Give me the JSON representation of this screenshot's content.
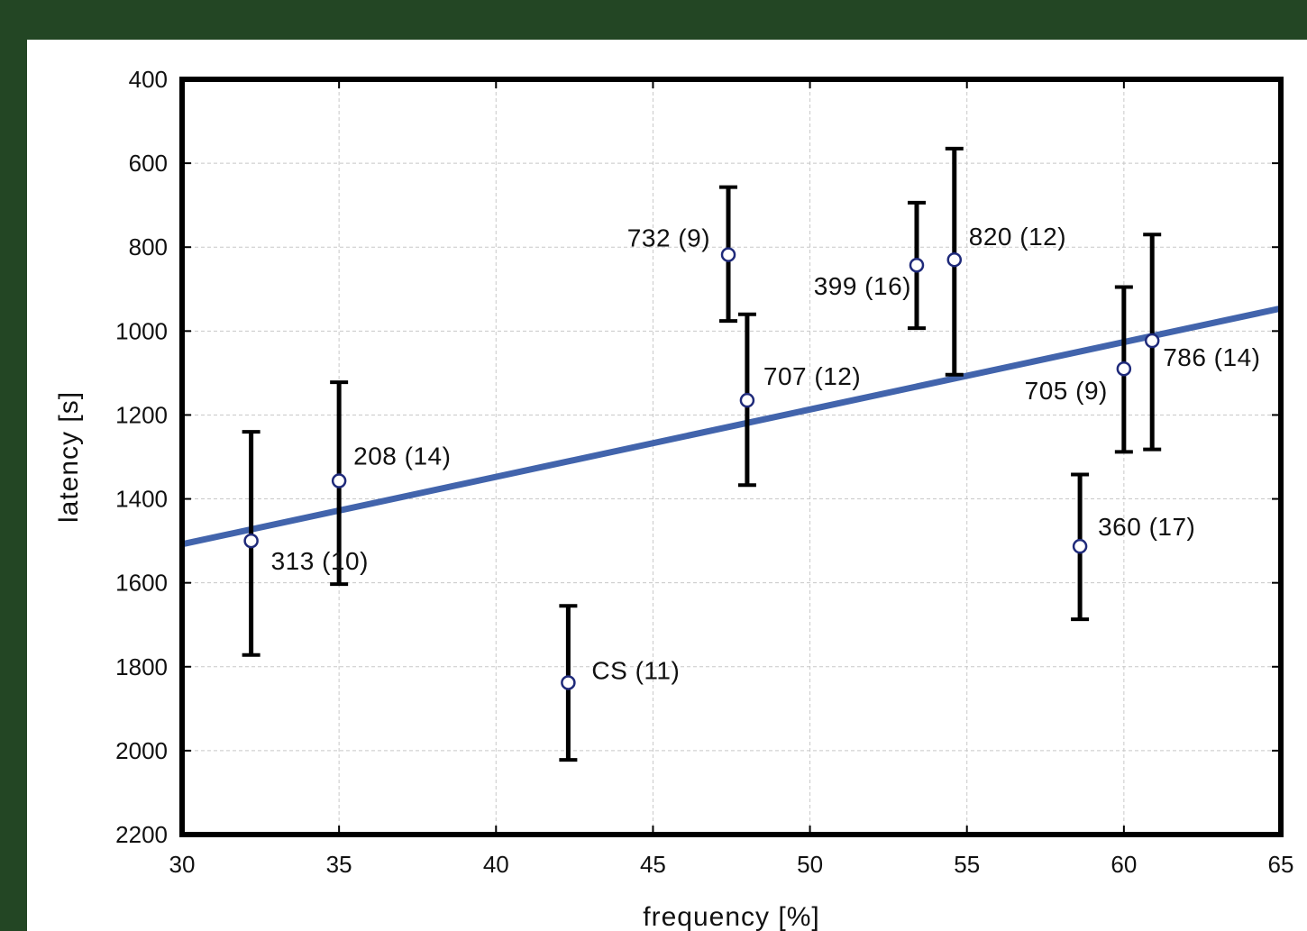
{
  "chart_data": {
    "type": "scatter",
    "xlabel": "frequency [%]",
    "ylabel": "latency [s]",
    "xlim": [
      30,
      65
    ],
    "ylim": [
      400,
      2200
    ],
    "y_inverted": true,
    "x_ticks": [
      "30",
      "35",
      "40",
      "45",
      "50",
      "55",
      "60",
      "65"
    ],
    "y_ticks": [
      "400",
      "600",
      "800",
      "1000",
      "1200",
      "1400",
      "1600",
      "1800",
      "2000",
      "2200"
    ],
    "grid": true,
    "colors": {
      "trend": "#4264ac",
      "point_stroke": "#1f2a7a",
      "errorbar": "#000000",
      "frame": "#000000"
    },
    "trendline": {
      "x": [
        30,
        65
      ],
      "y": [
        1508,
        946
      ]
    },
    "points": [
      {
        "label": "313 (10)",
        "x": 32.2,
        "y": 1500,
        "err_low": 1240,
        "err_high": 1772
      },
      {
        "label": "208 (14)",
        "x": 35.0,
        "y": 1357,
        "err_low": 1122,
        "err_high": 1603
      },
      {
        "label": "CS (11)",
        "x": 42.3,
        "y": 1838,
        "err_low": 1655,
        "err_high": 2022
      },
      {
        "label": "732 (9)",
        "x": 47.4,
        "y": 818,
        "err_low": 657,
        "err_high": 976
      },
      {
        "label": "707 (12)",
        "x": 48.0,
        "y": 1165,
        "err_low": 960,
        "err_high": 1367
      },
      {
        "label": "399 (16)",
        "x": 53.4,
        "y": 843,
        "err_low": 694,
        "err_high": 993
      },
      {
        "label": "820 (12)",
        "x": 54.6,
        "y": 830,
        "err_low": 565,
        "err_high": 1104
      },
      {
        "label": "360 (17)",
        "x": 58.6,
        "y": 1513,
        "err_low": 1342,
        "err_high": 1687
      },
      {
        "label": "705 (9)",
        "x": 60.0,
        "y": 1090,
        "err_low": 895,
        "err_high": 1288
      },
      {
        "label": "786 (14)",
        "x": 60.9,
        "y": 1023,
        "err_low": 770,
        "err_high": 1282
      }
    ]
  }
}
